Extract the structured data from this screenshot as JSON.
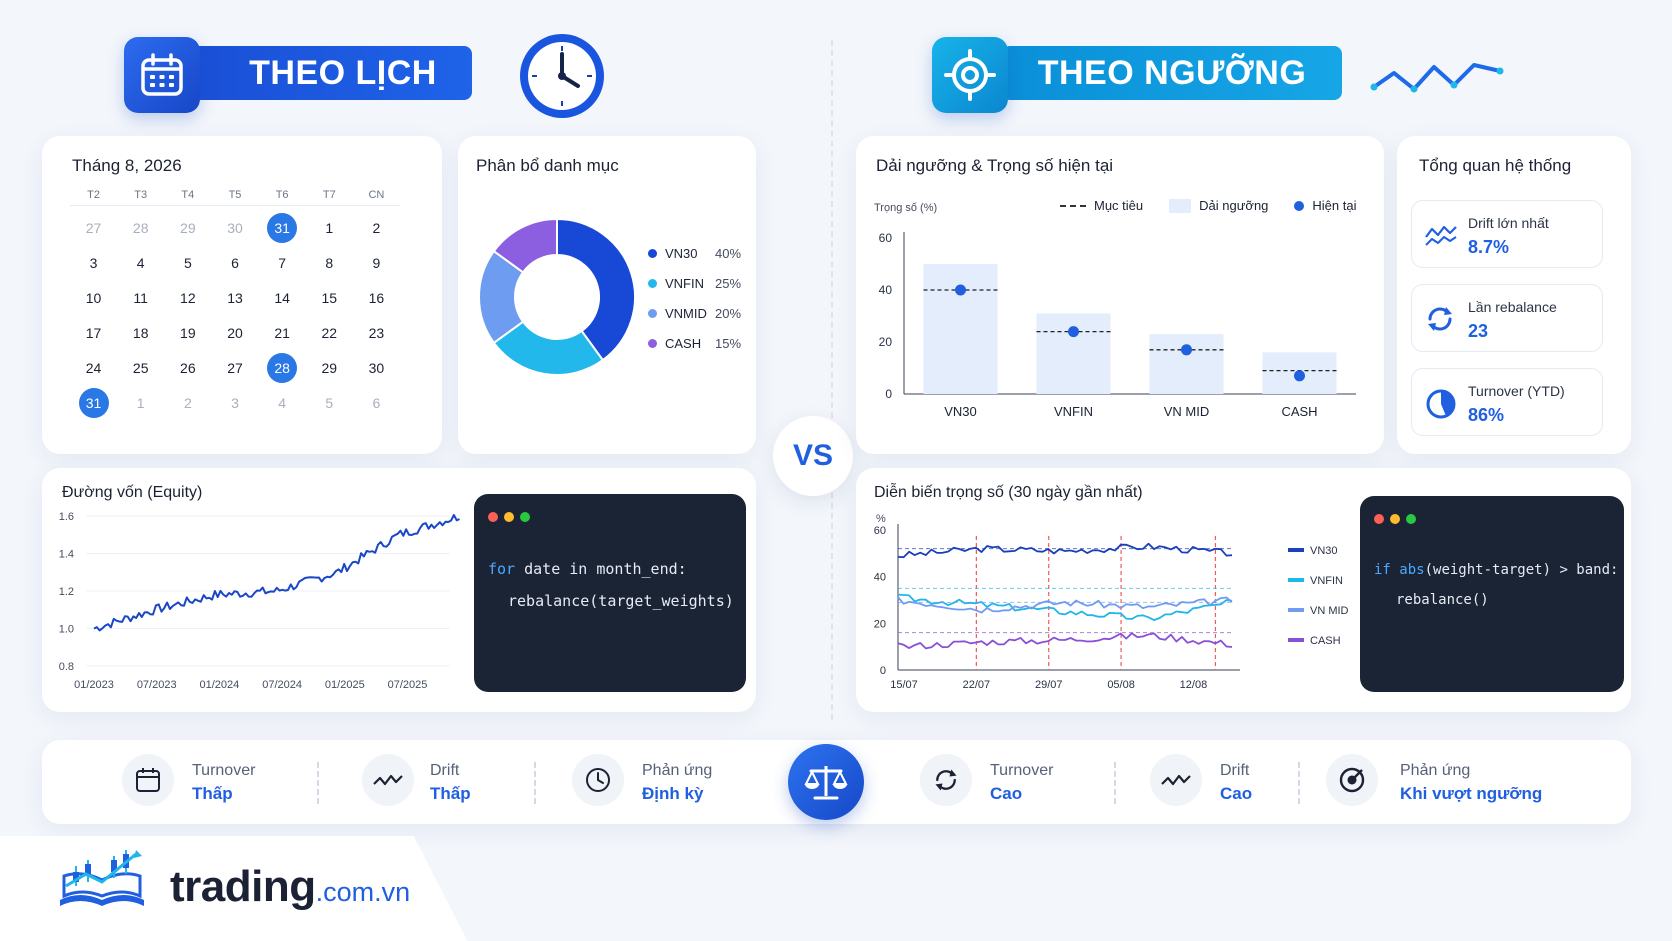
{
  "left_banner": {
    "title": "THEO LỊCH",
    "icon": "calendar-icon",
    "side_icon": "clock-icon"
  },
  "right_banner": {
    "title": "THEO NGƯỠNG",
    "icon": "target-icon",
    "side_icon": "zigzag-line-icon"
  },
  "calendar": {
    "title": "Tháng 8, 2026",
    "weekdays": [
      "T2",
      "T3",
      "T4",
      "T5",
      "T6",
      "T7",
      "CN"
    ],
    "rows": [
      [
        "27",
        "28",
        "29",
        "30",
        "31",
        "1",
        "2"
      ],
      [
        "3",
        "4",
        "5",
        "6",
        "7",
        "8",
        "9"
      ],
      [
        "10",
        "11",
        "12",
        "13",
        "14",
        "15",
        "16"
      ],
      [
        "17",
        "18",
        "19",
        "20",
        "21",
        "22",
        "23"
      ],
      [
        "24",
        "25",
        "26",
        "27",
        "28",
        "29",
        "30"
      ],
      [
        "31",
        "1",
        "2",
        "3",
        "4",
        "5",
        "6"
      ]
    ],
    "muted_cells": [
      "0-0",
      "0-1",
      "0-2",
      "0-3",
      "5-1",
      "5-2",
      "5-3",
      "5-4",
      "5-5",
      "5-6"
    ],
    "selected_cells": [
      "0-4",
      "4-4",
      "5-0"
    ]
  },
  "allocation": {
    "title": "Phân bổ danh mục",
    "items": [
      {
        "label": "VN30",
        "value": 40,
        "value_text": "40%",
        "color": "#1849d6"
      },
      {
        "label": "VNFIN",
        "value": 25,
        "value_text": "25%",
        "color": "#22b8ec"
      },
      {
        "label": "VNMID",
        "value": 20,
        "value_text": "20%",
        "color": "#6e9cf0"
      },
      {
        "label": "CASH",
        "value": 15,
        "value_text": "15%",
        "color": "#8b5fe0"
      }
    ]
  },
  "vs_label": "VS",
  "thresholds": {
    "title": "Dải ngưỡng & Trọng số hiện tại",
    "ylabel": "Trọng số (%)",
    "legend": {
      "target": "Mục tiêu",
      "band": "Dải ngưỡng",
      "current": "Hiện tại"
    },
    "yticks": [
      "60",
      "40",
      "20",
      "0"
    ]
  },
  "overview": {
    "title": "Tổng quan hệ thống",
    "items": [
      {
        "label": "Drift lớn nhất",
        "value": "8.7%",
        "icon": "wave-chart-icon"
      },
      {
        "label": "Lần rebalance",
        "value": "23",
        "icon": "refresh-icon"
      },
      {
        "label": "Turnover (YTD)",
        "value": "86%",
        "icon": "pie-icon"
      }
    ]
  },
  "equity": {
    "title": "Đường vốn (Equity)",
    "yticks": [
      "1.6",
      "1.4",
      "1.2",
      "1.0",
      "0.8"
    ],
    "xticks": [
      "01/2023",
      "07/2023",
      "01/2024",
      "07/2024",
      "01/2025",
      "07/2025"
    ]
  },
  "code_left": {
    "line1_kw1": "for",
    "line1_rest1": " date ",
    "line1_kw2": "in",
    "line1_rest2": " month_end:",
    "line2": "rebalance(target_weights)"
  },
  "weights": {
    "title": "Diễn biến trọng số (30 ngày gần nhất)",
    "ylabel": "%",
    "yticks": [
      "60",
      "40",
      "20",
      "0"
    ],
    "xticks": [
      "15/07",
      "22/07",
      "29/07",
      "05/08",
      "12/08"
    ]
  },
  "code_right": {
    "kw1": "if",
    "kw2": "abs",
    "rest": "(weight-target) > band:",
    "line2": "rebalance()"
  },
  "bottom": {
    "left": [
      {
        "label": "Turnover",
        "value": "Thấp",
        "icon": "calendar-icon"
      },
      {
        "label": "Drift",
        "value": "Thấp",
        "icon": "wave-icon"
      },
      {
        "label": "Phản ứng",
        "value": "Định kỳ",
        "icon": "clock-icon"
      }
    ],
    "center_icon": "scale-icon",
    "right": [
      {
        "label": "Turnover",
        "value": "Cao",
        "icon": "refresh-icon"
      },
      {
        "label": "Drift",
        "value": "Cao",
        "icon": "wave-icon"
      },
      {
        "label": "Phản ứng",
        "value": "Khi vượt ngưỡng",
        "icon": "target-icon"
      }
    ]
  },
  "brand": {
    "name": "trading",
    "suffix": ".com.vn",
    "logo": "book-chart-logo"
  },
  "chart_data": [
    {
      "type": "bar",
      "title": "Dải ngưỡng & Trọng số hiện tại",
      "ylabel": "Trọng số (%)",
      "ylim": [
        0,
        60
      ],
      "categories": [
        "VN30",
        "VNFIN",
        "VN MID",
        "CASH"
      ],
      "series": [
        {
          "name": "Dải ngưỡng",
          "values": [
            50,
            31,
            23,
            16
          ]
        },
        {
          "name": "Mục tiêu",
          "values": [
            40,
            24,
            17,
            9
          ]
        },
        {
          "name": "Hiện tại",
          "values": [
            40,
            24,
            17,
            7
          ]
        }
      ],
      "legend": "top-right"
    },
    {
      "type": "line",
      "title": "Đường vốn (Equity)",
      "ylim": [
        0.8,
        1.6
      ],
      "x": [
        "01/2023",
        "07/2023",
        "01/2024",
        "07/2024",
        "01/2025",
        "07/2025"
      ],
      "values": [
        1.0,
        1.1,
        1.18,
        1.2,
        1.3,
        1.5
      ],
      "end_value": 1.6
    },
    {
      "type": "line",
      "title": "Diễn biến trọng số (30 ngày gần nhất)",
      "ylabel": "%",
      "ylim": [
        0,
        60
      ],
      "x": [
        "15/07",
        "22/07",
        "29/07",
        "05/08",
        "12/08"
      ],
      "series": [
        {
          "name": "VN30",
          "values": [
            49,
            52,
            51,
            53,
            50
          ],
          "target": 52,
          "color": "#1a3fb8"
        },
        {
          "name": "VNFIN",
          "values": [
            31,
            28,
            25,
            22,
            29
          ],
          "target": 35,
          "color": "#1fb6e8"
        },
        {
          "name": "VN MID",
          "values": [
            30,
            26,
            29,
            27,
            30
          ],
          "target": 29,
          "color": "#6f9cf0"
        },
        {
          "name": "CASH",
          "values": [
            10,
            12,
            13,
            15,
            11
          ],
          "target": 16,
          "color": "#8a4fd6"
        }
      ],
      "rebalance_markers": [
        "22/07",
        "29/07",
        "05/08",
        "12/08"
      ],
      "legend": "right"
    }
  ]
}
